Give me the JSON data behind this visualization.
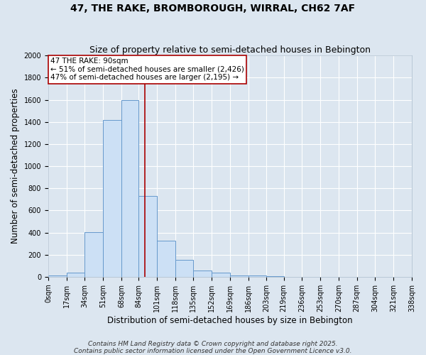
{
  "title": "47, THE RAKE, BROMBOROUGH, WIRRAL, CH62 7AF",
  "subtitle": "Size of property relative to semi-detached houses in Bebington",
  "xlabel": "Distribution of semi-detached houses by size in Bebington",
  "ylabel": "Number of semi-detached properties",
  "footnote1": "Contains HM Land Registry data © Crown copyright and database right 2025.",
  "footnote2": "Contains public sector information licensed under the Open Government Licence v3.0.",
  "bin_edges": [
    0,
    17,
    34,
    51,
    68,
    84,
    101,
    118,
    135,
    152,
    169,
    186,
    203,
    219,
    236,
    253,
    270,
    287,
    304,
    321,
    338
  ],
  "bin_labels": [
    "0sqm",
    "17sqm",
    "34sqm",
    "51sqm",
    "68sqm",
    "84sqm",
    "101sqm",
    "118sqm",
    "135sqm",
    "152sqm",
    "169sqm",
    "186sqm",
    "203sqm",
    "219sqm",
    "236sqm",
    "253sqm",
    "270sqm",
    "287sqm",
    "304sqm",
    "321sqm",
    "338sqm"
  ],
  "bar_heights": [
    10,
    35,
    405,
    1420,
    1600,
    730,
    325,
    155,
    55,
    35,
    15,
    10,
    5,
    0,
    0,
    0,
    0,
    0,
    0,
    0
  ],
  "bar_color": "#cce0f5",
  "bar_edge_color": "#6699cc",
  "vline_x": 90,
  "vline_color": "#aa0000",
  "annotation_text": "47 THE RAKE: 90sqm\n← 51% of semi-detached houses are smaller (2,426)\n47% of semi-detached houses are larger (2,195) →",
  "annotation_box_color": "#ffffff",
  "annotation_box_edge_color": "#aa0000",
  "ylim": [
    0,
    2000
  ],
  "yticks": [
    0,
    200,
    400,
    600,
    800,
    1000,
    1200,
    1400,
    1600,
    1800,
    2000
  ],
  "background_color": "#dce6f0",
  "plot_bg_color": "#dce6f0",
  "grid_color": "#ffffff",
  "title_fontsize": 10,
  "subtitle_fontsize": 9,
  "axis_label_fontsize": 8.5,
  "tick_fontsize": 7,
  "annotation_fontsize": 7.5,
  "footnote_fontsize": 6.5
}
